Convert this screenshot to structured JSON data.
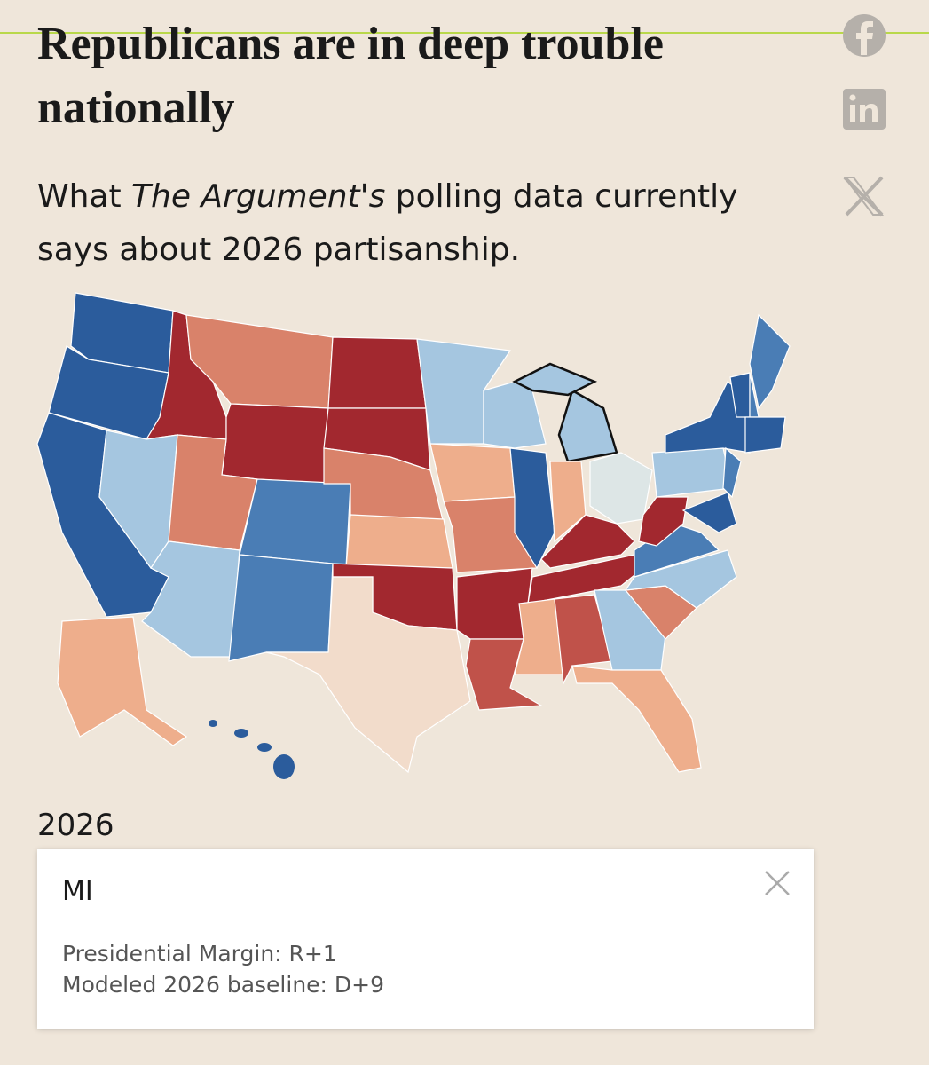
{
  "header": {
    "title": "Republicans are in deep trouble nationally",
    "subtitle": {
      "before": "What ",
      "emphasis": "The Argument's",
      "after": " polling data currently says about 2026 partisanship."
    }
  },
  "map": {
    "year": "2026"
  },
  "tooltip": {
    "state": "MI",
    "lines": [
      "Presidential Margin: R+1",
      "Modeled 2026 baseline: D+9"
    ]
  }
}
